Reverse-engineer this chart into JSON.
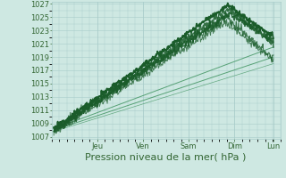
{
  "title": "Pression niveau de la mer( hPa )",
  "bg_color": "#cee8e2",
  "grid_color": "#a8ccca",
  "line_color_dark": "#1a5c2a",
  "line_color_light": "#4a9a6a",
  "ylim": [
    1007,
    1027
  ],
  "yticks": [
    1007,
    1009,
    1011,
    1013,
    1015,
    1017,
    1019,
    1021,
    1023,
    1025,
    1027
  ],
  "day_labels": [
    "Jeu",
    "Ven",
    "Sam",
    "Dim",
    "Lun"
  ],
  "day_positions": [
    1,
    2,
    3,
    4,
    4.85
  ],
  "xlim": [
    0.0,
    5.0
  ],
  "tick_fontsize": 6,
  "title_fontsize": 8
}
